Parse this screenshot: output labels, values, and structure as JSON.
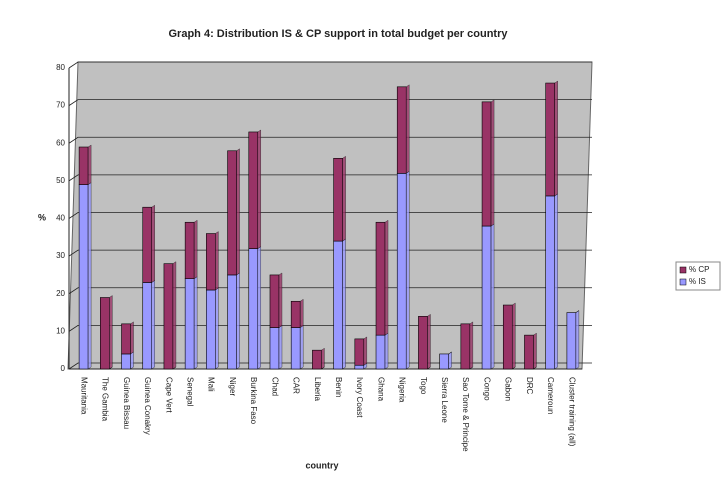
{
  "chart_data": {
    "type": "stacked_bar",
    "title": "Graph 4: Distribution IS & CP support in total budget per country",
    "x_label": "country",
    "y_label": "%",
    "categories": [
      "Mauritania",
      "The Gambia",
      "Guinea Bissau",
      "Guinea Conakry",
      "Cape Vert",
      "Senegal",
      "Mali",
      "Niger",
      "Burkina Faso",
      "Chad",
      "CAR",
      "Liberia",
      "Benin",
      "Ivory Coast",
      "Ghana",
      "Nigeria",
      "Togo",
      "Sierra Leone",
      "Sao Tome & Principe",
      "Congo",
      "Gabon",
      "DRC",
      "Cameroun",
      "Cluster training (all)"
    ],
    "series": [
      {
        "name": "% IS",
        "color": "#9999ff",
        "values": [
          49,
          0,
          4,
          23,
          0,
          24,
          21,
          25,
          32,
          11,
          11,
          0,
          34,
          1,
          9,
          52,
          0,
          4,
          0,
          38,
          0,
          0,
          46,
          15
        ]
      },
      {
        "name": "% CP",
        "color": "#993366",
        "values": [
          10,
          19,
          8,
          20,
          28,
          15,
          15,
          33,
          31,
          14,
          7,
          5,
          22,
          7,
          30,
          23,
          14,
          0,
          12,
          33,
          17,
          9,
          30,
          0
        ]
      }
    ],
    "ylim": [
      0,
      80
    ],
    "yticks": [
      0,
      10,
      20,
      30,
      40,
      50,
      60,
      70,
      80
    ],
    "grid": true
  }
}
